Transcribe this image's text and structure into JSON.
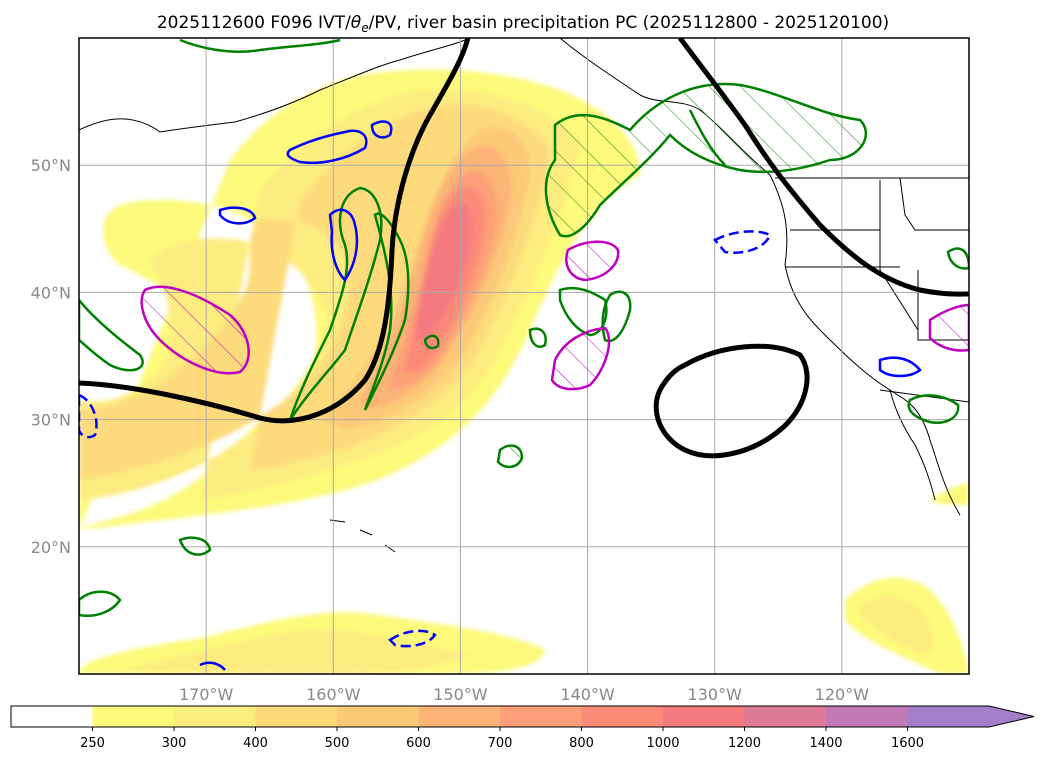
{
  "chart_data": {
    "type": "heatmap",
    "title_prefix": "2025112600 F096 IVT/",
    "title_theta": "θ",
    "title_sub": "e",
    "title_suffix": "/PV, river basin precipitation PC (2025112800 - 2025120100)",
    "x_ticks": [
      "170°W",
      "160°W",
      "150°W",
      "140°W",
      "130°W",
      "120°W"
    ],
    "y_ticks": [
      "50°N",
      "40°N",
      "30°N",
      "20°N"
    ],
    "lon_range": [
      -180,
      -110
    ],
    "lat_range": [
      10,
      60
    ],
    "colorbar": {
      "levels": [
        "250",
        "300",
        "400",
        "500",
        "600",
        "700",
        "800",
        "1000",
        "1200",
        "1400",
        "1600"
      ],
      "colors": [
        "#ffffff",
        "#fdfa7c",
        "#fdec7f",
        "#fddb7b",
        "#fcc978",
        "#fcb376",
        "#fd9f78",
        "#fc8a79",
        "#f47a80",
        "#dd7a96",
        "#c17ab5",
        "#a47ec9"
      ]
    }
  }
}
